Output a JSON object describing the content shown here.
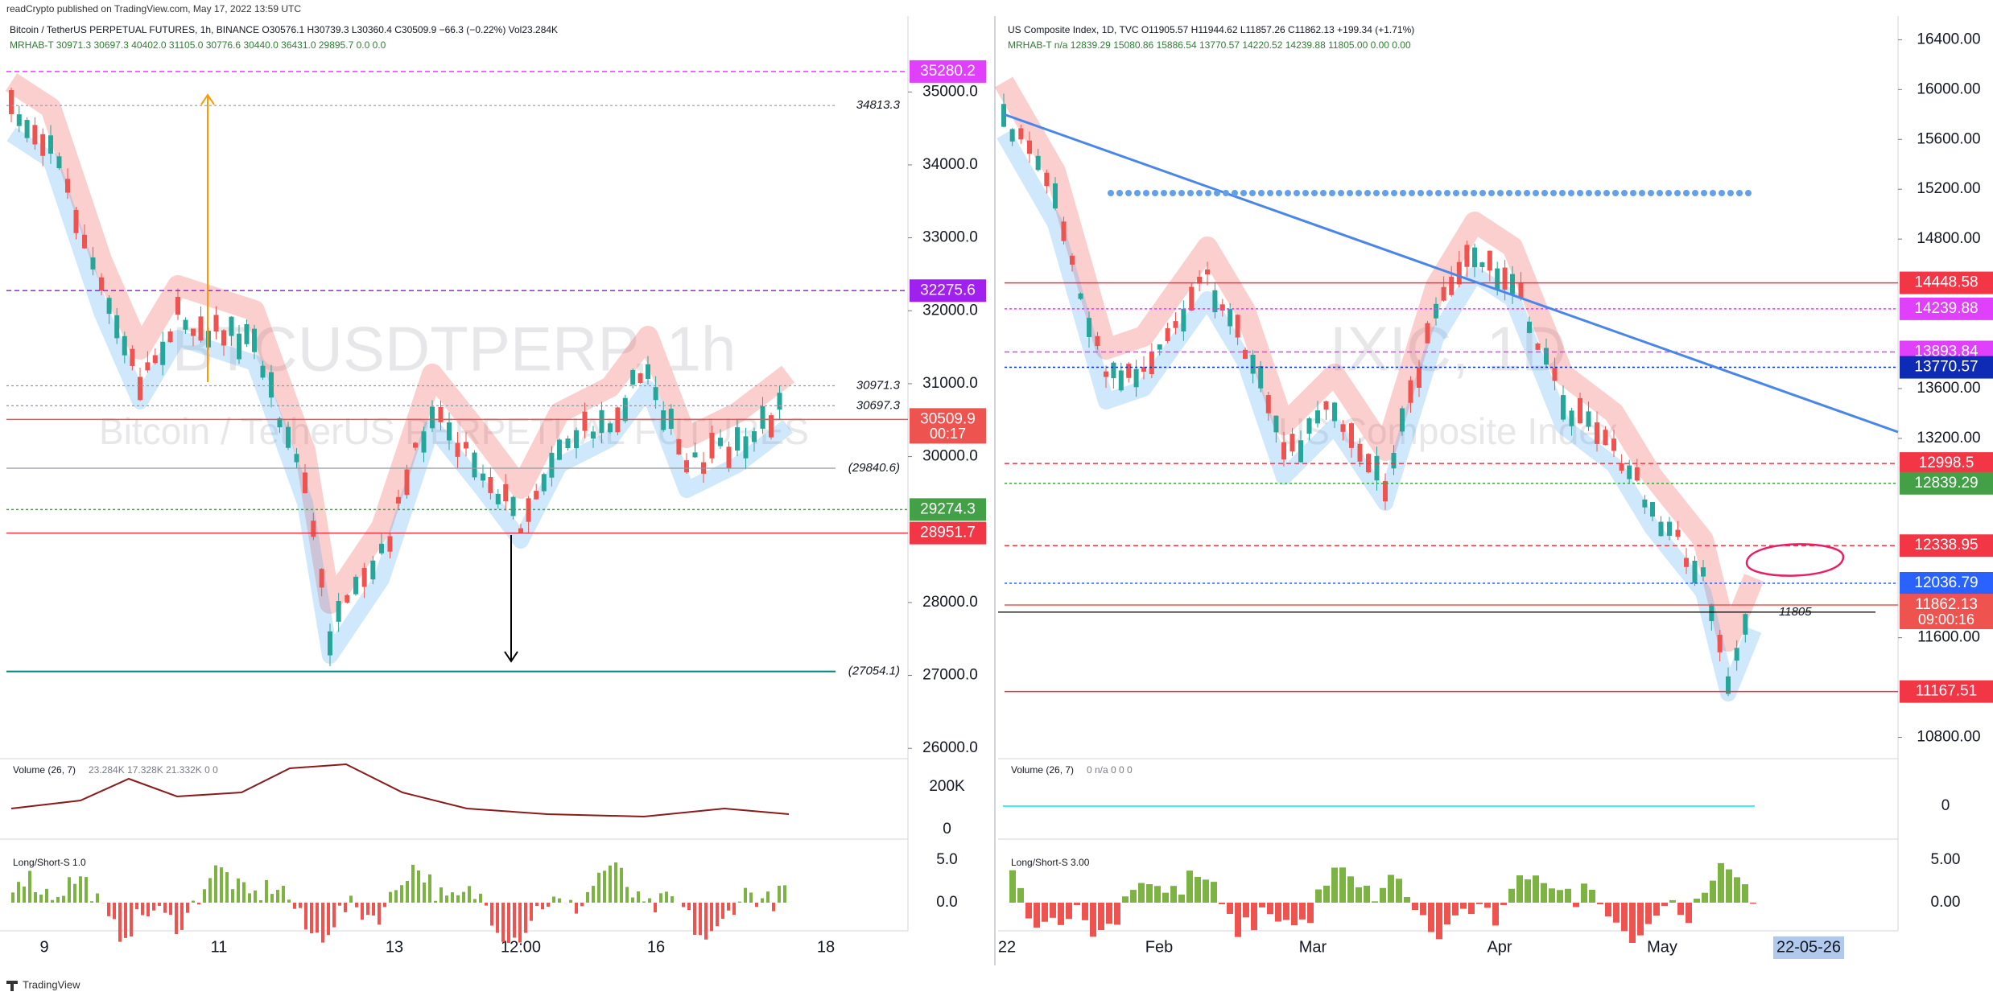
{
  "header": {
    "publisher": "readCrypto published on TradingView.com, May 17, 2022 13:59 UTC",
    "footer": "TradingView"
  },
  "left": {
    "header": "Bitcoin / TetherUS PERPETUAL FUTURES, 1h, BINANCE  O30576.1 H30739.3 L30360.4 C30509.9 −66.3 (−0.22%) Vol23.284K",
    "indicator": "MRHAB-T  30971.3 30697.3 40402.0 31105.0 30776.6 30440.0 36431.0 29895.7 0.0 0.0",
    "watermark_symbol": "BTCUSDTPERP, 1h",
    "watermark_name": "Bitcoin / TetherUS PERPETUAL FUTURES",
    "ylim": [
      25859,
      36040
    ],
    "yticks": [
      {
        "value": 35000,
        "label": "35000.0"
      },
      {
        "value": 34000,
        "label": "34000.0"
      },
      {
        "value": 33000,
        "label": "33000.0"
      },
      {
        "value": 32000,
        "label": "32000.0"
      },
      {
        "value": 31000,
        "label": "31000.0"
      },
      {
        "value": 30000,
        "label": "30000.0"
      },
      {
        "value": 28000,
        "label": "28000.0"
      },
      {
        "value": 27000,
        "label": "27000.0"
      },
      {
        "value": 26000,
        "label": "26000.0"
      }
    ],
    "price_tags": [
      {
        "value": 35280.2,
        "color": "#e040fb"
      },
      {
        "value": 32275.6,
        "color": "#a020f0"
      },
      {
        "value": 30509.9,
        "color": "#ef5350",
        "sub": "00:17"
      },
      {
        "value": 29274.3,
        "color": "#43a047"
      },
      {
        "value": 28951.7,
        "color": "#f23645"
      }
    ],
    "line_labels": [
      {
        "value": 34813.3
      },
      {
        "value": 30971.3
      },
      {
        "value": 30697.3
      },
      {
        "value": 29840.6,
        "label": "(29840.6)"
      },
      {
        "value": 27054.1,
        "label": "(27054.1)"
      }
    ],
    "time_labels": [
      "9",
      "11",
      "13",
      "12:00",
      "16",
      "18"
    ],
    "volume": {
      "title": "Volume (26, 7)",
      "values": "23.284K  17.328K  21.332K  0  0",
      "axis": [
        "200K",
        "0"
      ]
    },
    "long_short": {
      "title": "Long/Short-S  1.0",
      "axis": [
        "5.0",
        "0.0"
      ]
    }
  },
  "right": {
    "header": "US Composite Index, 1D, TVC  O11905.57 H11944.62 L11857.26 C11862.13 +199.34 (+1.71%)",
    "indicator": "MRHAB-T  n/a 12839.29 15080.86 15886.54 13770.57 14220.52 14239.88 11805.00 0.00 0.00",
    "watermark_symbol": "IXIC, 1D",
    "watermark_name": "US Composite Index",
    "ylim": [
      10629,
      16590
    ],
    "yticks": [
      {
        "value": 16400,
        "label": "16400.00"
      },
      {
        "value": 16000,
        "label": "16000.00"
      },
      {
        "value": 15600,
        "label": "15600.00"
      },
      {
        "value": 15200,
        "label": "15200.00"
      },
      {
        "value": 14800,
        "label": "14800.00"
      },
      {
        "value": 13600,
        "label": "13600.00"
      },
      {
        "value": 13200,
        "label": "13200.00"
      },
      {
        "value": 11600,
        "label": "11600.00"
      },
      {
        "value": 10800,
        "label": "10800.00"
      }
    ],
    "price_tags": [
      {
        "value": 14448.58,
        "color": "#f23645"
      },
      {
        "value": 14239.88,
        "color": "#e040fb"
      },
      {
        "value": 13893.84,
        "color": "#e040fb"
      },
      {
        "value": 13770.57,
        "color": "#0d2bb5"
      },
      {
        "value": 12998.5,
        "color": "#f23645"
      },
      {
        "value": 12839.29,
        "color": "#43a047"
      },
      {
        "value": 12338.95,
        "color": "#f23645"
      },
      {
        "value": 12036.79,
        "color": "#2962ff"
      },
      {
        "value": 11862.13,
        "color": "#ef5350",
        "sub": "09:00:16"
      },
      {
        "value": 11167.51,
        "color": "#f23645"
      }
    ],
    "line_labels": [
      {
        "value": 11805
      }
    ],
    "time_labels": [
      "22",
      "Feb",
      "Mar",
      "Apr",
      "May",
      "22-05-26"
    ],
    "volume": {
      "title": "Volume (26, 7)",
      "values": "0  n/a  0  0  0",
      "axis": [
        "0"
      ]
    },
    "long_short": {
      "title": "Long/Short-S  3.00",
      "axis": [
        "5.00",
        "0.00"
      ]
    }
  }
}
